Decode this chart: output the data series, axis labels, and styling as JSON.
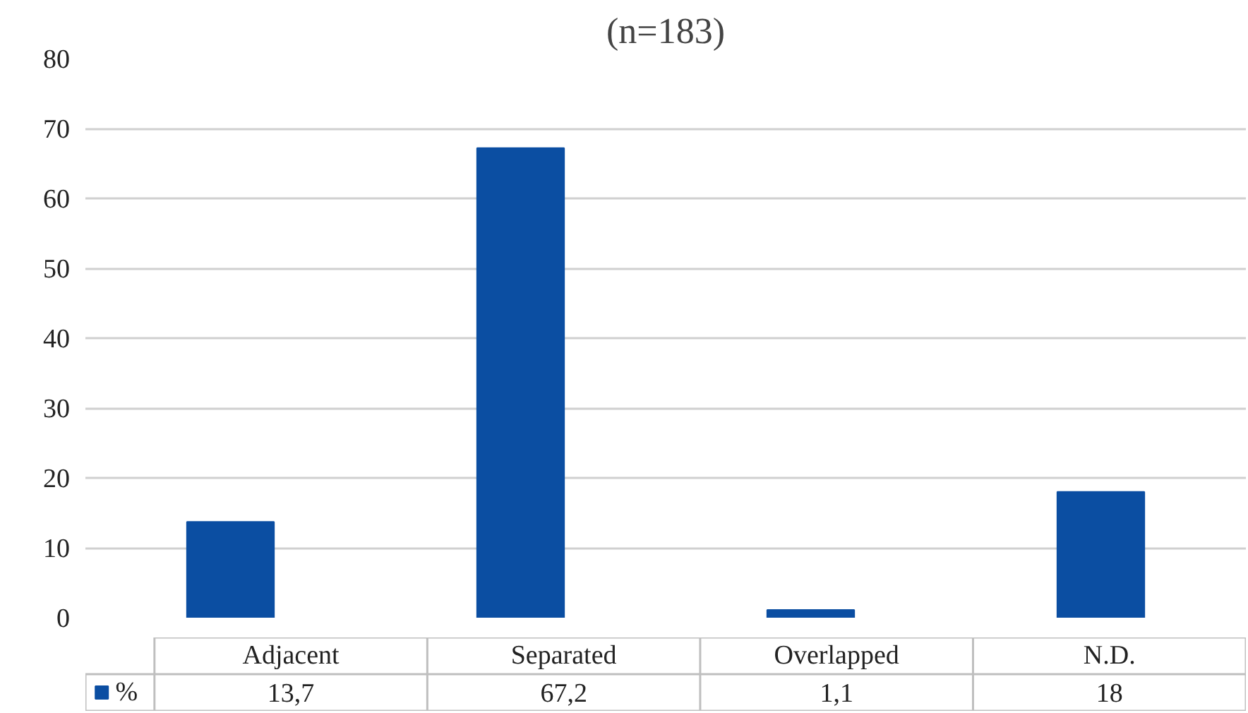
{
  "chart_data": {
    "type": "bar",
    "title": "(n=183)",
    "categories": [
      "Adjacent",
      "Separated",
      "Overlapped",
      "N.D."
    ],
    "series": [
      {
        "name": "%",
        "color": "#0b4ea2",
        "values": [
          13.7,
          67.2,
          1.1,
          18
        ],
        "value_labels": [
          "13,7",
          "67,2",
          "1,1",
          "18"
        ]
      }
    ],
    "ylim": [
      0,
      80
    ],
    "yticks": [
      0,
      10,
      20,
      30,
      40,
      50,
      60,
      70,
      80
    ],
    "grid": "y",
    "legend": "bottom"
  }
}
